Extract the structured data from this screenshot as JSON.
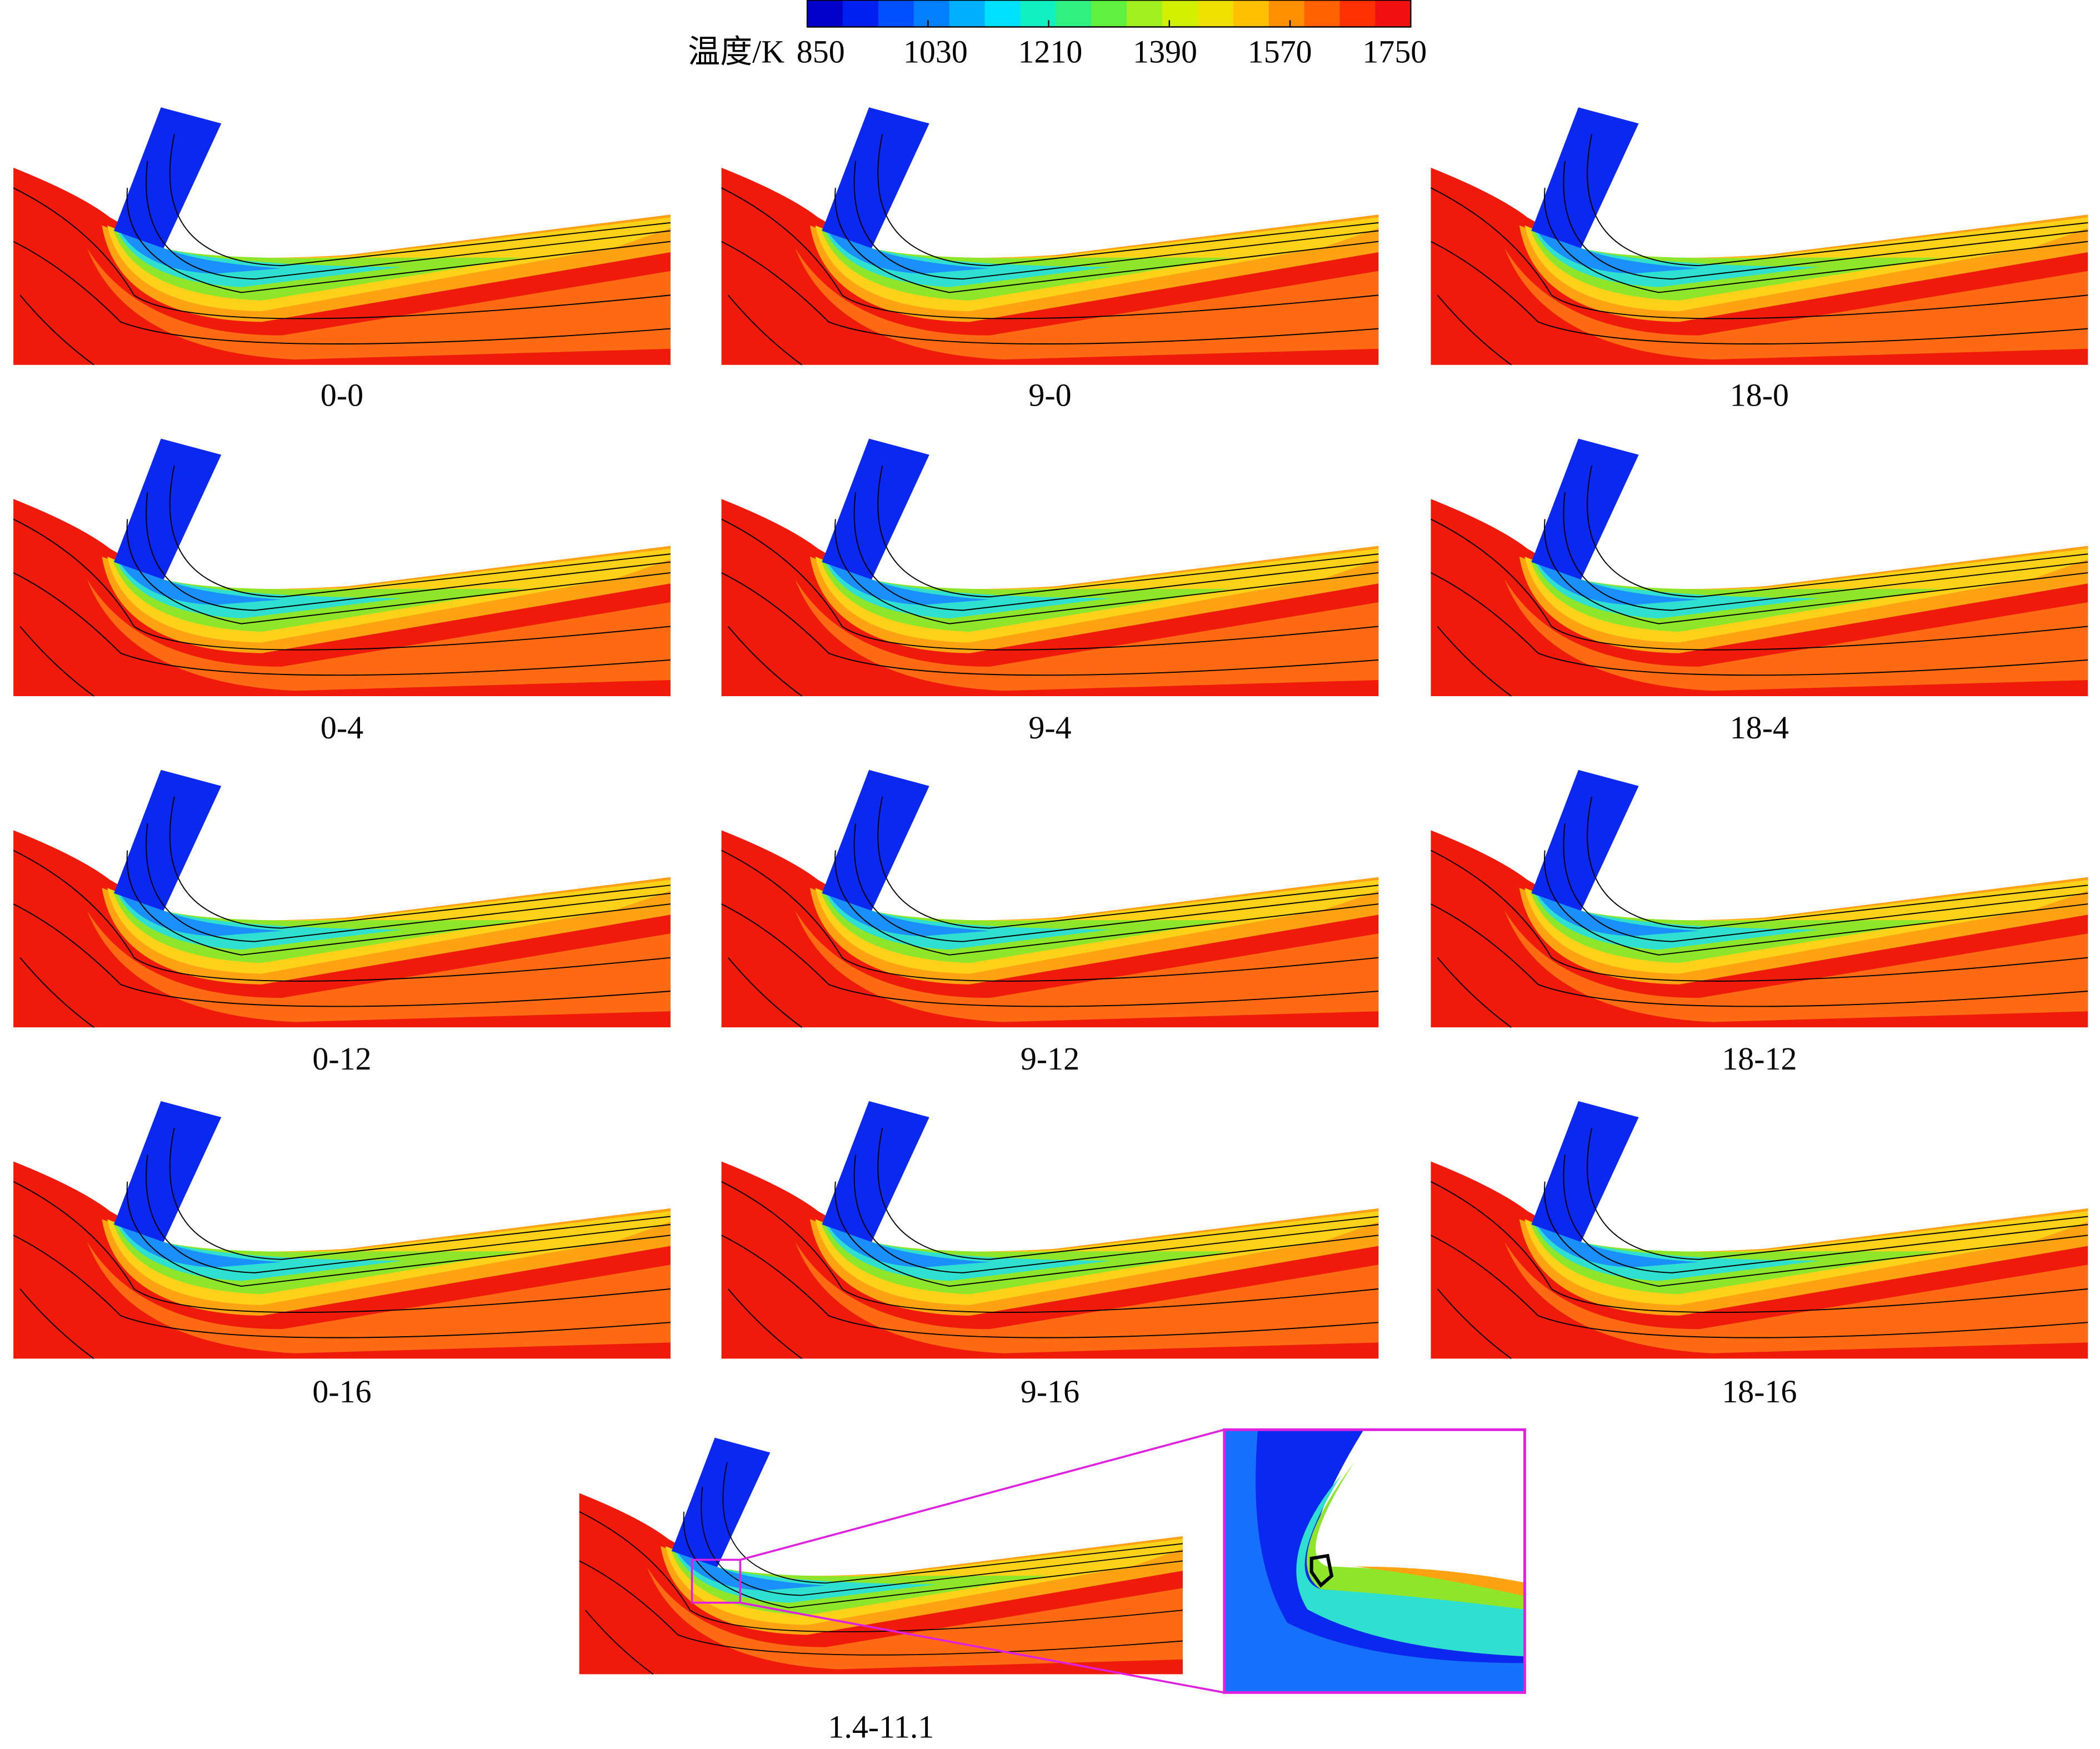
{
  "colorbar": {
    "label": "温度/K",
    "ticks": [
      850,
      1030,
      1210,
      1390,
      1570,
      1750
    ]
  },
  "panels": [
    {
      "label": "0-0"
    },
    {
      "label": "9-0"
    },
    {
      "label": "18-0"
    },
    {
      "label": "0-4"
    },
    {
      "label": "9-4"
    },
    {
      "label": "18-4"
    },
    {
      "label": "0-12"
    },
    {
      "label": "9-12"
    },
    {
      "label": "18-12"
    },
    {
      "label": "0-16"
    },
    {
      "label": "9-16"
    },
    {
      "label": "18-16"
    },
    {
      "label": "1.4-11.1"
    }
  ]
}
